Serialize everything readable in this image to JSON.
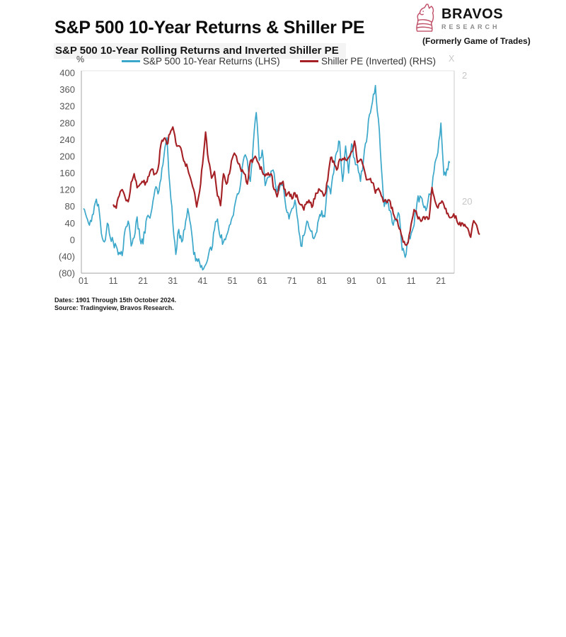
{
  "charts": [
    {
      "title": "S&P 500 10-Year Returns & Shiller PE",
      "subtitle": "S&P 500 10-Year Rolling Returns and Inverted Shiller PE",
      "logo": {
        "brand": "BRAVOS",
        "sub": "RESEARCH",
        "tagline": "(Formerly Game of Trades)"
      },
      "left_axis_unit": "%",
      "right_axis_unit": "X",
      "legend": [
        {
          "label": "S&P 500 10-Year Returns (LHS)",
          "color": "#3BA7CA"
        },
        {
          "label": "Shiller PE (Inverted) (RHS)",
          "color": "#A42025"
        }
      ],
      "left_ticks": [
        "400",
        "360",
        "320",
        "280",
        "240",
        "200",
        "160",
        "120",
        "80",
        "40",
        "0",
        "(40)",
        "(80)"
      ],
      "right_ticks": [
        "2",
        "20"
      ],
      "x_labels": [
        "01",
        "11",
        "21",
        "31",
        "41",
        "51",
        "61",
        "71",
        "81",
        "91",
        "01",
        "11",
        "21"
      ],
      "footnote_line1": "Dates: 1901 Through 15th October 2024.",
      "footnote_line2": "Source: Tradingview, Bravos Research.",
      "red_shift_years": 0,
      "right_axis_muted": false
    },
    {
      "title": "S&P 500 10-Year Returns & Shiller PE",
      "subtitle": "S&P 500 10-Year Rolling Returns and Inverted Shiller PE",
      "logo": {
        "brand": "BRAVOS",
        "sub": "RESEARCH",
        "tagline": "(Formerly Game of Trades)"
      },
      "left_axis_unit": "%",
      "right_axis_unit": "X",
      "legend": [
        {
          "label": "S&P 500 10-Year Returns (LHS)",
          "color": "#3BA7CA"
        },
        {
          "label": "Shiller PE (Inverted) (RHS)",
          "color": "#A42025"
        }
      ],
      "left_ticks": [
        "400",
        "360",
        "320",
        "280",
        "240",
        "200",
        "160",
        "120",
        "80",
        "40",
        "0",
        "(40)",
        "(80)"
      ],
      "right_ticks": [
        "2",
        "20"
      ],
      "x_labels": [
        "01",
        "11",
        "21",
        "31",
        "41",
        "51",
        "61",
        "71",
        "81",
        "91",
        "01",
        "11",
        "21"
      ],
      "footnote_line1": "Dates: 1901 Through 15th October 2024.",
      "footnote_line2": "Source: Tradingview, Bravos Research.",
      "red_shift_years": 10,
      "right_axis_muted": true
    }
  ],
  "chart_data": {
    "type": "line",
    "x_start_year": 1901,
    "x_end_year": 2024,
    "left_axis": {
      "unit": "%",
      "range": [
        -80,
        400
      ],
      "tick_step": 40,
      "negative_format": "parentheses"
    },
    "right_axis": {
      "unit": "X",
      "scale": "log-inverted",
      "labeled_values": [
        2,
        20
      ]
    },
    "series": [
      {
        "name": "S&P 500 10-Year Returns (LHS)",
        "axis": "left",
        "color": "#3BA7CA",
        "values": [
          75,
          55,
          35,
          60,
          90,
          85,
          15,
          -5,
          40,
          5,
          -5,
          -15,
          -30,
          -38,
          25,
          45,
          -15,
          5,
          55,
          0,
          -10,
          45,
          55,
          75,
          120,
          110,
          145,
          200,
          245,
          130,
          40,
          -35,
          25,
          -5,
          25,
          75,
          35,
          -35,
          -45,
          -55,
          -72,
          -60,
          -35,
          -25,
          25,
          50,
          5,
          -5,
          10,
          35,
          55,
          90,
          110,
          150,
          200,
          190,
          140,
          230,
          305,
          190,
          215,
          130,
          150,
          165,
          160,
          115,
          130,
          135,
          75,
          50,
          75,
          95,
          45,
          -15,
          10,
          45,
          25,
          5,
          15,
          50,
          70,
          55,
          130,
          110,
          160,
          210,
          235,
          140,
          225,
          160,
          230,
          195,
          180,
          140,
          190,
          235,
          300,
          330,
          370,
          290,
          175,
          80,
          95,
          70,
          35,
          45,
          60,
          -25,
          -42,
          -5,
          15,
          35,
          90,
          105,
          85,
          70,
          110,
          125,
          185,
          210,
          280,
          155,
          170,
          185
        ]
      },
      {
        "name": "Shiller PE (Inverted) (RHS)",
        "axis": "right",
        "color": "#A42025",
        "values": [
          21,
          22.5,
          18,
          16,
          18.5,
          20,
          14,
          12,
          15.5,
          14.5,
          14,
          14,
          12.5,
          11,
          12,
          11,
          7,
          6.3,
          7,
          5.8,
          5.1,
          6.8,
          7.2,
          8,
          9.7,
          11,
          13.2,
          16,
          22,
          16.5,
          10,
          5.6,
          9.5,
          13,
          11.5,
          18,
          21.5,
          12,
          14.5,
          12,
          9,
          8.5,
          10,
          11.5,
          12,
          14.5,
          9.5,
          9.2,
          9,
          10.2,
          11.5,
          12.5,
          11.8,
          12,
          16,
          18.3,
          14.2,
          13.8,
          18,
          16.7,
          19,
          17,
          19.2,
          21.2,
          23.3,
          20,
          20.4,
          21.5,
          17.1,
          15.8,
          16.5,
          17.6,
          13.5,
          8.9,
          9.5,
          11.2,
          9.2,
          9.1,
          9.3,
          8.9,
          8,
          6.6,
          9.8,
          9.2,
          10.5,
          13.4,
          13.3,
          14.1,
          17.1,
          15.6,
          18,
          19.8,
          20.3,
          20,
          24.8,
          27.7,
          32.8,
          38.3,
          43.8,
          42.2,
          30.1,
          23.1,
          25.7,
          27.7,
          26.5,
          26.4,
          27.3,
          15.4,
          19.7,
          22.4,
          20.5,
          21.2,
          24.9,
          26.8,
          26,
          25.9,
          30.4,
          29.4,
          30.3,
          32.5,
          38.3,
          28.3,
          30.8,
          36.5
        ]
      }
    ],
    "notes": "Second chart plots the same Shiller PE (inverted) series shifted forward 10 years; it starts one decade after the left axis and extends past the right axis."
  }
}
